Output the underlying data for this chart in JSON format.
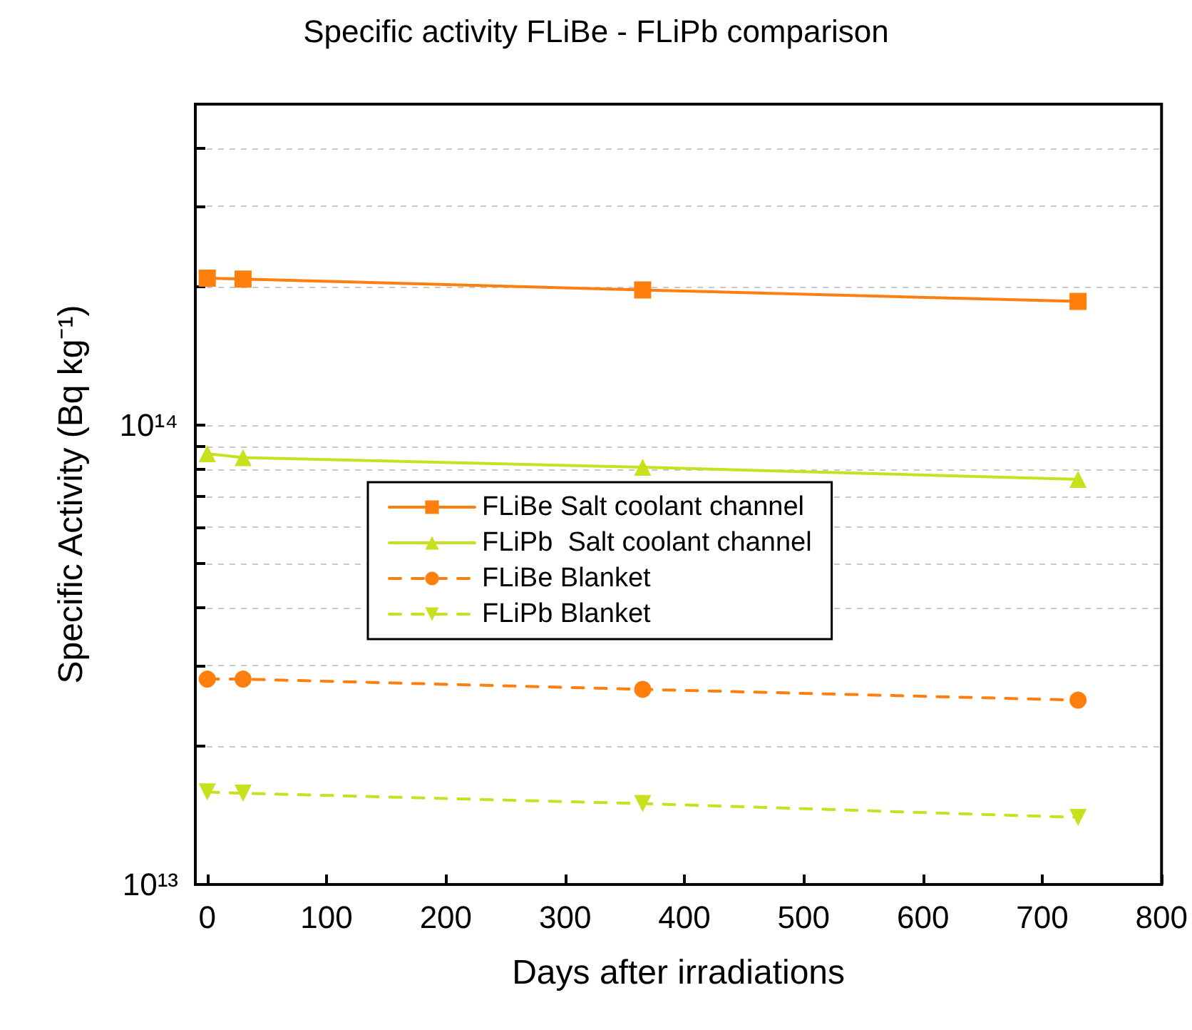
{
  "chart_data": {
    "type": "line",
    "title": "Specific activity FLiBe - FLiPb comparison",
    "xlabel": "Days after irradiations",
    "ylabel": "Specific Activity (Bq kg⁻¹)",
    "x": [
      0,
      30,
      365,
      730
    ],
    "series": [
      {
        "name": "FLiBe Salt coolant channel",
        "color": "#ff7f0e",
        "marker": "square",
        "line_style": "solid",
        "values": [
          209000000000000.0,
          208000000000000.0,
          197000000000000.0,
          186000000000000.0
        ]
      },
      {
        "name": "FLiPb  Salt coolant channel",
        "color": "#c8e01e",
        "marker": "triangle",
        "line_style": "solid",
        "values": [
          86700000000000.0,
          85000000000000.0,
          81000000000000.0,
          76200000000000.0
        ]
      },
      {
        "name": "FLiBe Blanket",
        "color": "#ff7f0e",
        "marker": "circle",
        "line_style": "dashed",
        "values": [
          28000000000000.0,
          28000000000000.0,
          26600000000000.0,
          25200000000000.0
        ]
      },
      {
        "name": "FLiPb Blanket",
        "color": "#c8e01e",
        "marker": "triangle-down",
        "line_style": "dashed",
        "values": [
          15900000000000.0,
          15800000000000.0,
          15000000000000.0,
          14000000000000.0
        ]
      }
    ],
    "log": "y",
    "grid": "y",
    "legend": "center",
    "xlim": [
      -10,
      800
    ],
    "xticks": [
      0,
      100,
      200,
      300,
      400,
      500,
      600,
      700,
      800
    ],
    "ylim": [
      10000000000000.0,
      500000000000000.0
    ],
    "yticks": [
      {
        "value": 10000000000000.0,
        "label": "10¹³"
      },
      {
        "value": 20000000000000.0,
        "label": null
      },
      {
        "value": 30000000000000.0,
        "label": null
      },
      {
        "value": 40000000000000.0,
        "label": null
      },
      {
        "value": 50000000000000.0,
        "label": null
      },
      {
        "value": 60000000000000.0,
        "label": null
      },
      {
        "value": 70000000000000.0,
        "label": null
      },
      {
        "value": 80000000000000.0,
        "label": null
      },
      {
        "value": 90000000000000.0,
        "label": null
      },
      {
        "value": 100000000000000.0,
        "label": "10¹⁴"
      },
      {
        "value": 200000000000000.0,
        "label": null
      },
      {
        "value": 300000000000000.0,
        "label": null
      },
      {
        "value": 400000000000000.0,
        "label": null
      },
      {
        "value": 500000000000000.0,
        "label": null
      }
    ]
  }
}
